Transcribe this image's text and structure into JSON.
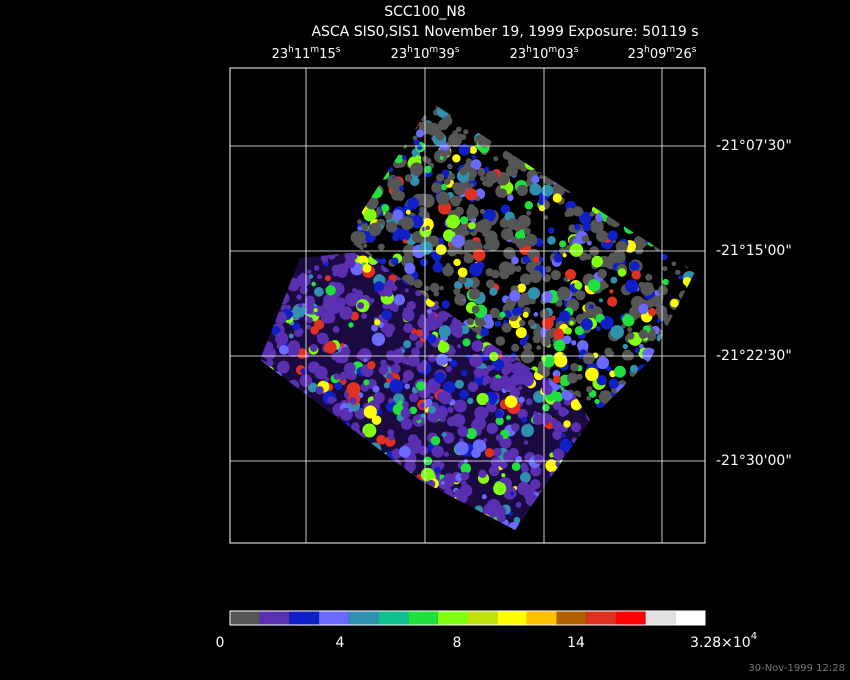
{
  "header": {
    "title": "SCC100_N8",
    "subtitle": "ASCA SIS0,SIS1 November 19, 1999 Exposure: 50119 s"
  },
  "ra_labels": [
    [
      "23",
      "h",
      "11",
      "m",
      "15",
      "s"
    ],
    [
      "23",
      "h",
      "10",
      "m",
      "39",
      "s"
    ],
    [
      "23",
      "h",
      "10",
      "m",
      "03",
      "s"
    ],
    [
      "23",
      "h",
      "09",
      "m",
      "26",
      "s"
    ]
  ],
  "dec_labels": [
    "-21°07'30\"",
    "-21°15'00\"",
    "-21°22'30\"",
    "-21°30'00\""
  ],
  "colorbar": {
    "colors": [
      "#555555",
      "#5a2fb0",
      "#1020c8",
      "#6a6aff",
      "#3090b0",
      "#10c090",
      "#20e040",
      "#80ff10",
      "#c0e010",
      "#ffff00",
      "#ffc000",
      "#b06000",
      "#e03020",
      "#ff0000",
      "#e0e0e0",
      "#ffffff"
    ],
    "labels": [
      "0",
      "4",
      "8",
      "14"
    ],
    "max_label": [
      "3.28×10",
      "4"
    ]
  },
  "footer": {
    "timestamp": "30-Nov-1999 12:28"
  }
}
